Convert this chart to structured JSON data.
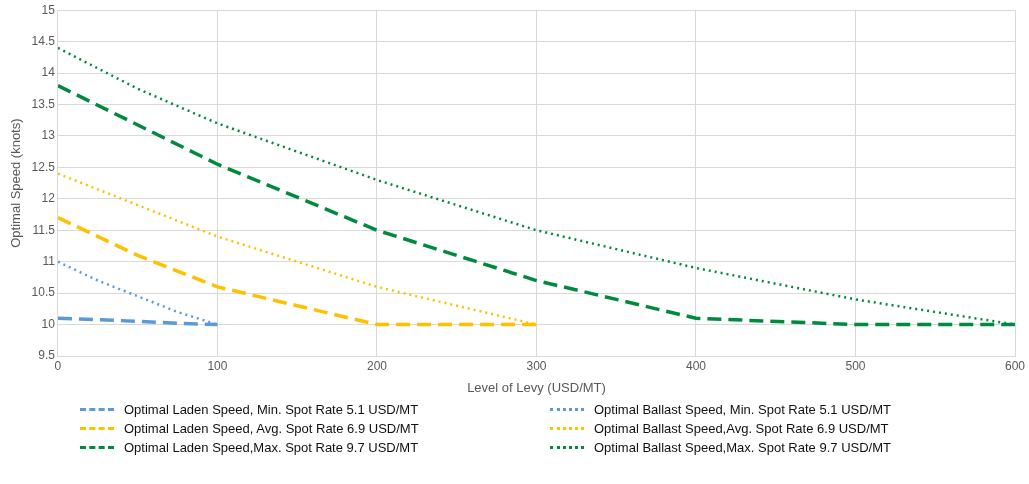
{
  "chart_data": {
    "type": "line",
    "xlabel": "Level of Levy (USD/MT)",
    "ylabel": "Optimal Speed (knots)",
    "xlim": [
      0,
      600
    ],
    "xticks": [
      0,
      100,
      200,
      300,
      400,
      500,
      600
    ],
    "ylim": [
      9.5,
      15
    ],
    "yticks": [
      9.5,
      10,
      10.5,
      11,
      11.5,
      12,
      12.5,
      13,
      13.5,
      14,
      14.5,
      15
    ],
    "grid": true,
    "legend": "bottom",
    "marker": "none",
    "series": [
      {
        "name": "Optimal Laden Speed, Min. Spot Rate 5.1 USD/MT",
        "color": "#5b9bd5",
        "line_style": "dashed",
        "x": [
          0,
          25,
          50,
          75,
          100
        ],
        "values": [
          10.1,
          10.08,
          10.05,
          10.02,
          10.0
        ]
      },
      {
        "name": "Optimal Ballast Speed, Min. Spot Rate 5.1 USD/MT",
        "color": "#5b9bd5",
        "line_style": "dotted",
        "x": [
          0,
          25,
          50,
          75,
          100
        ],
        "values": [
          11.0,
          10.7,
          10.45,
          10.2,
          10.0
        ]
      },
      {
        "name": "Optimal Laden Speed, Avg. Spot Rate 6.9 USD/MT",
        "color": "#ffc000",
        "line_style": "dashed",
        "x": [
          0,
          50,
          100,
          150,
          200,
          250,
          300
        ],
        "values": [
          11.7,
          11.1,
          10.6,
          10.3,
          10.0,
          10.0,
          10.0
        ]
      },
      {
        "name": "Optimal Ballast Speed,Avg. Spot Rate 6.9 USD/MT",
        "color": "#ffc000",
        "line_style": "dotted",
        "x": [
          0,
          50,
          100,
          150,
          200,
          250,
          300
        ],
        "values": [
          12.4,
          11.9,
          11.4,
          11.0,
          10.6,
          10.3,
          10.0
        ]
      },
      {
        "name": "Optimal Laden Speed,Max. Spot Rate 9.7 USD/MT",
        "color": "#008a3e",
        "line_style": "dashed",
        "x": [
          0,
          100,
          200,
          300,
          350,
          400,
          500,
          600
        ],
        "values": [
          13.8,
          12.55,
          11.5,
          10.7,
          10.4,
          10.1,
          10.0,
          10.0
        ]
      },
      {
        "name": "Optimal Ballast Speed,Max. Spot Rate 9.7 USD/MT",
        "color": "#008a3e",
        "line_style": "dotted",
        "x": [
          0,
          50,
          100,
          200,
          300,
          400,
          500,
          600
        ],
        "values": [
          14.4,
          13.75,
          13.2,
          12.3,
          11.5,
          10.9,
          10.4,
          10.0
        ]
      }
    ]
  }
}
